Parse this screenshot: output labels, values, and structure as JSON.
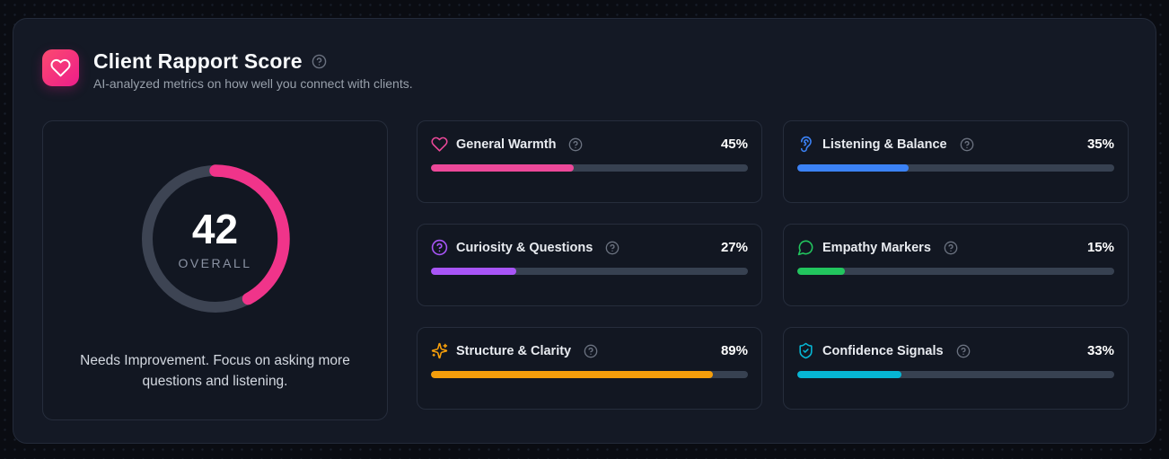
{
  "header": {
    "title": "Client Rapport Score",
    "subtitle": "AI-analyzed metrics on how well you connect with clients.",
    "badge_icon": "heart-icon",
    "badge_gradient": [
      "#fb4a6f",
      "#ee1d8b"
    ],
    "help_icon": "help-circle-icon"
  },
  "overall": {
    "value": 42,
    "max": 100,
    "display": "42",
    "label": "OVERALL",
    "message": "Needs Improvement. Focus on asking more questions and listening.",
    "ring_color": "#f0348a",
    "track_color": "#3d4453"
  },
  "metrics": [
    {
      "label": "General Warmth",
      "value": 45,
      "display": "45%",
      "color": "#ec4899",
      "icon": "heart-icon"
    },
    {
      "label": "Listening & Balance",
      "value": 35,
      "display": "35%",
      "color": "#3b82f6",
      "icon": "ear-icon"
    },
    {
      "label": "Curiosity & Questions",
      "value": 27,
      "display": "27%",
      "color": "#a855f7",
      "icon": "circle-question-icon"
    },
    {
      "label": "Empathy Markers",
      "value": 15,
      "display": "15%",
      "color": "#22c55e",
      "icon": "message-circle-icon"
    },
    {
      "label": "Structure & Clarity",
      "value": 89,
      "display": "89%",
      "color": "#f59e0b",
      "icon": "sparkles-icon"
    },
    {
      "label": "Confidence Signals",
      "value": 33,
      "display": "33%",
      "color": "#06b6d4",
      "icon": "shield-check-icon"
    }
  ],
  "colors": {
    "page_bg": "#0a0c12",
    "panel_bg": "#141925",
    "card_bg": "#121722",
    "card_border": "#262d3c",
    "bar_track": "#374151",
    "title_text": "#f8fafc",
    "muted_text": "#98a0ab",
    "help_icon": "#6b7280"
  }
}
